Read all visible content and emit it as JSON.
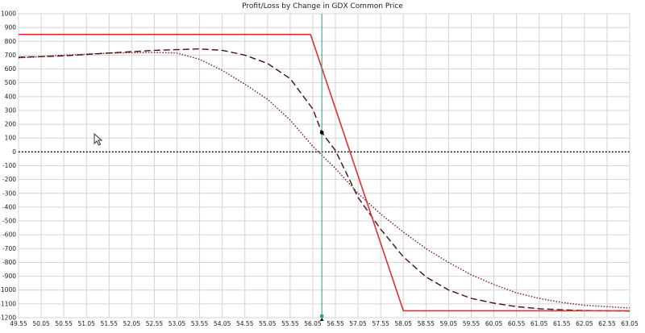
{
  "chart_data": {
    "type": "line",
    "title": "Profit/Loss by Change in GDX Common Price",
    "xlabel": "",
    "ylabel": "",
    "xlim": [
      49.55,
      63.05
    ],
    "ylim": [
      -1200,
      1000
    ],
    "x_ticks": [
      "49.55",
      "50.05",
      "50.55",
      "51.05",
      "51.55",
      "52.05",
      "52.55",
      "53.05",
      "53.55",
      "54.05",
      "54.55",
      "55.05",
      "55.55",
      "56.05",
      "56.55",
      "57.05",
      "57.55",
      "58.05",
      "58.55",
      "59.05",
      "59.55",
      "60.05",
      "60.55",
      "61.05",
      "61.55",
      "62.05",
      "62.55",
      "63.05"
    ],
    "y_ticks": [
      "1000",
      "900",
      "800",
      "700",
      "600",
      "500",
      "400",
      "300",
      "200",
      "100",
      "0",
      "-100",
      "-200",
      "-300",
      "-400",
      "-500",
      "-600",
      "-700",
      "-800",
      "-900",
      "-1000",
      "-1100",
      "-1200"
    ],
    "grid": true,
    "current_price": 56.25,
    "current_value": 140,
    "colors": {
      "expiration": "#e03030",
      "dashed": "#4a0d0d",
      "dotted": "#7a1a1a",
      "zero_line": "#000000",
      "price_marker": "#2a9a8a",
      "grid": "#d4d4d4"
    },
    "series": [
      {
        "style": "solid",
        "x": [
          49.55,
          56.0,
          58.05,
          63.05
        ],
        "y": [
          850,
          850,
          -1150,
          -1150
        ]
      },
      {
        "style": "dashed",
        "x": [
          49.55,
          50.55,
          51.55,
          52.55,
          53.55,
          54.05,
          54.55,
          55.05,
          55.55,
          56.05,
          56.25,
          56.55,
          57.05,
          57.55,
          58.05,
          58.55,
          59.05,
          59.55,
          60.05,
          60.55,
          61.05,
          61.55,
          62.05,
          63.05
        ],
        "y": [
          685,
          695,
          715,
          735,
          745,
          735,
          700,
          640,
          530,
          310,
          140,
          10,
          -330,
          -560,
          -760,
          -905,
          -1000,
          -1060,
          -1095,
          -1120,
          -1135,
          -1143,
          -1148,
          -1152
        ]
      },
      {
        "style": "dotted",
        "x": [
          49.55,
          50.55,
          51.55,
          52.55,
          53.05,
          53.55,
          54.05,
          54.55,
          55.05,
          55.55,
          56.05,
          56.55,
          57.05,
          57.55,
          58.05,
          58.55,
          59.05,
          59.55,
          60.05,
          60.55,
          61.05,
          61.55,
          62.05,
          63.05
        ],
        "y": [
          680,
          700,
          715,
          720,
          715,
          670,
          590,
          490,
          380,
          230,
          40,
          -120,
          -300,
          -450,
          -580,
          -700,
          -800,
          -890,
          -960,
          -1020,
          -1060,
          -1090,
          -1110,
          -1130
        ]
      }
    ]
  },
  "icons": {
    "cursor": "mouse-pointer-icon"
  }
}
